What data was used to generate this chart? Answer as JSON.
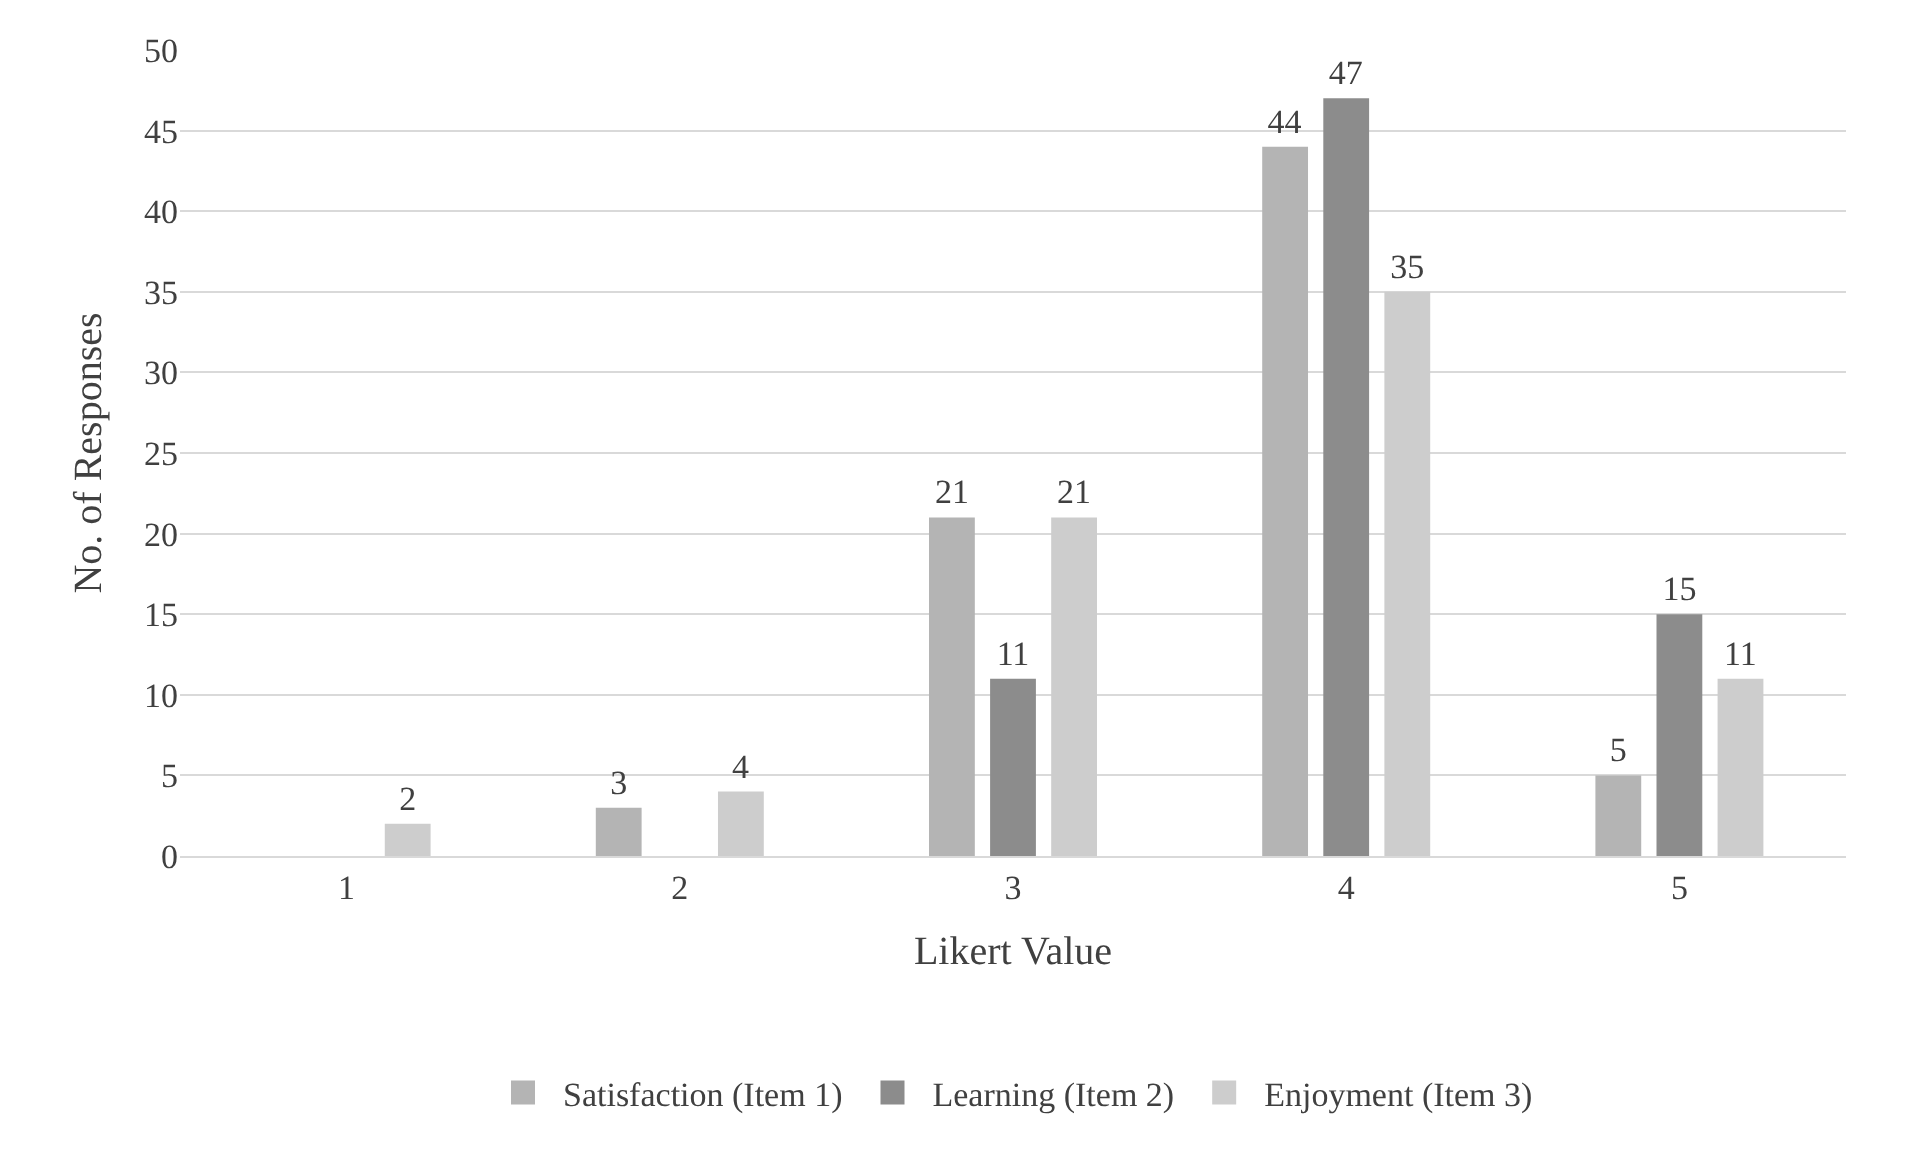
{
  "chart_data": {
    "type": "bar",
    "xlabel": "Likert Value",
    "ylabel": "No. of Responses",
    "categories": [
      "1",
      "2",
      "3",
      "4",
      "5"
    ],
    "series": [
      {
        "name": "Satisfaction (Item 1)",
        "color": "#b4b4b4",
        "values": [
          0,
          3,
          21,
          44,
          5
        ],
        "value_labels": [
          null,
          "3",
          "21",
          "44",
          "5"
        ]
      },
      {
        "name": "Learning (Item 2)",
        "color": "#8c8c8c",
        "values": [
          0,
          0,
          11,
          47,
          15
        ],
        "value_labels": [
          null,
          null,
          "11",
          "47",
          "15"
        ]
      },
      {
        "name": "Enjoyment (Item 3)",
        "color": "#cdcdcd",
        "values": [
          2,
          4,
          21,
          35,
          11
        ],
        "value_labels": [
          "2",
          "4",
          "21",
          "35",
          "11"
        ]
      }
    ],
    "ylim": [
      0,
      50
    ],
    "yticks": [
      0,
      5,
      10,
      15,
      20,
      25,
      30,
      35,
      40,
      45,
      50
    ],
    "grid": "y",
    "legend": "bottom"
  }
}
